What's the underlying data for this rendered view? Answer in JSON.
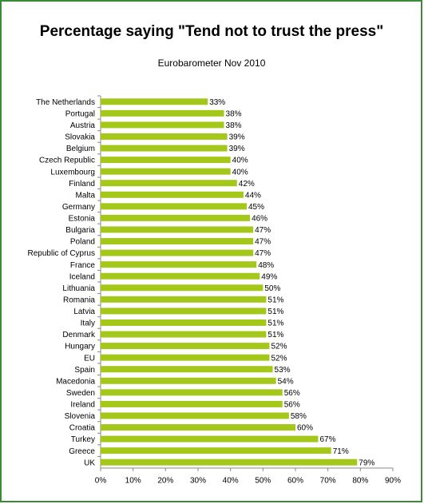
{
  "chart_data": {
    "type": "bar",
    "orientation": "horizontal",
    "title": "Percentage saying \"Tend not to trust the press\"",
    "subtitle": "Eurobarometer Nov 2010",
    "categories": [
      "The Netherlands",
      "Portugal",
      "Austria",
      "Slovakia",
      "Belgium",
      "Czech Republic",
      "Luxembourg",
      "Finland",
      "Malta",
      "Germany",
      "Estonia",
      "Bulgaria",
      "Poland",
      "Republic of Cyprus",
      "France",
      "Iceland",
      "Lithuania",
      "Romania",
      "Latvia",
      "Italy",
      "Denmark",
      "Hungary",
      "EU",
      "Spain",
      "Macedonia",
      "Sweden",
      "Ireland",
      "Slovenia",
      "Croatia",
      "Turkey",
      "Greece",
      "UK"
    ],
    "values": [
      33,
      38,
      38,
      39,
      39,
      40,
      40,
      42,
      44,
      45,
      46,
      47,
      47,
      47,
      48,
      49,
      50,
      51,
      51,
      51,
      51,
      52,
      52,
      53,
      54,
      56,
      56,
      58,
      60,
      67,
      71,
      79
    ],
    "value_labels": [
      "33%",
      "38%",
      "38%",
      "39%",
      "39%",
      "40%",
      "40%",
      "42%",
      "44%",
      "45%",
      "46%",
      "47%",
      "47%",
      "47%",
      "48%",
      "49%",
      "50%",
      "51%",
      "51%",
      "51%",
      "51%",
      "52%",
      "52%",
      "53%",
      "54%",
      "56%",
      "56%",
      "58%",
      "60%",
      "67%",
      "71%",
      "79%"
    ],
    "color": "#a4c81a",
    "xlim": [
      0,
      90
    ],
    "xticks": [
      {
        "value": 0,
        "label": "0%"
      },
      {
        "value": 10,
        "label": "10%"
      },
      {
        "value": 20,
        "label": "20%"
      },
      {
        "value": 30,
        "label": "30%"
      },
      {
        "value": 40,
        "label": "40%"
      },
      {
        "value": 50,
        "label": "50%"
      },
      {
        "value": 60,
        "label": "60%"
      },
      {
        "value": 70,
        "label": "70%"
      },
      {
        "value": 80,
        "label": "80%"
      },
      {
        "value": 90,
        "label": "90%"
      }
    ],
    "grid": false
  }
}
